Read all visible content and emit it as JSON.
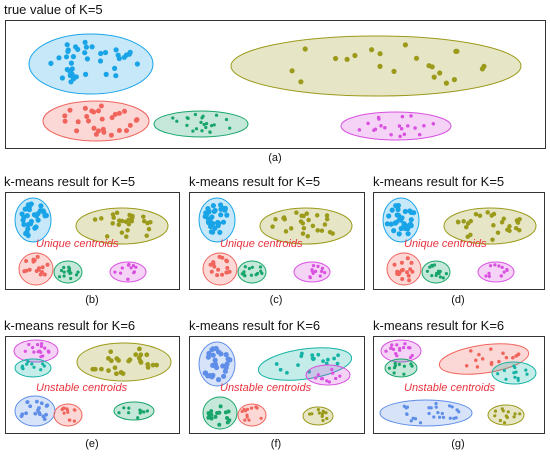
{
  "top": {
    "title": "true value of K=5",
    "caption": "(a)"
  },
  "k5": {
    "title": "k-means result for K=5",
    "note": "Unique centroids"
  },
  "k6": {
    "title": "k-means result for K=6",
    "note": "Unstable centroids"
  },
  "captions": {
    "b": "(b)",
    "c": "(c)",
    "d": "(d)",
    "e": "(e)",
    "f": "(f)",
    "g": "(g)"
  },
  "colors": {
    "blue": "#1aa4e8",
    "olive": "#9b9a1a",
    "red": "#f0645c",
    "green": "#18a56b",
    "magenta": "#d94fe0",
    "teal": "#15b3a6",
    "cornflower": "#5f8ee8"
  }
}
